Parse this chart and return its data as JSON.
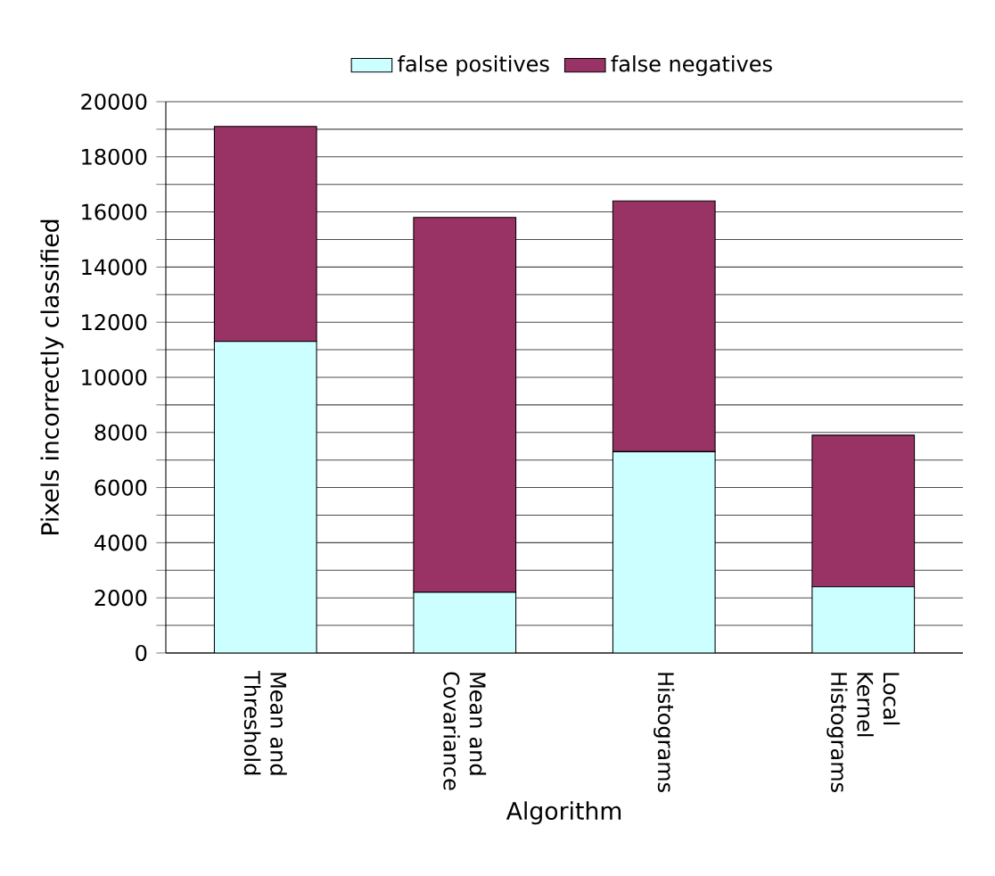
{
  "chart_data": {
    "type": "bar",
    "stacked": true,
    "xlabel": "Algorithm",
    "ylabel": "Pixels incorrectly classified",
    "categories": [
      "Mean and Threshold",
      "Mean and Covariance",
      "Histograms",
      "Local Kernel Histograms"
    ],
    "series": [
      {
        "name": "false positives",
        "color": "#ccffff",
        "values": [
          11300,
          2200,
          7300,
          2400
        ]
      },
      {
        "name": "false negatives",
        "color": "#993366",
        "values": [
          7800,
          13600,
          9100,
          5500
        ]
      }
    ],
    "ylim": [
      0,
      20000
    ],
    "yticks": [
      0,
      {
        "value": 1000,
        "label": null
      },
      2000,
      {
        "value": 3000,
        "label": null
      },
      4000,
      {
        "value": 5000,
        "label": null
      },
      6000,
      {
        "value": 7000,
        "label": null
      },
      8000,
      {
        "value": 9000,
        "label": null
      },
      10000,
      {
        "value": 11000,
        "label": null
      },
      12000,
      {
        "value": 13000,
        "label": null
      },
      14000,
      {
        "value": 15000,
        "label": null
      },
      16000,
      {
        "value": 17000,
        "label": null
      },
      18000,
      {
        "value": 19000,
        "label": null
      },
      20000
    ],
    "grid": "y",
    "legend": "top"
  }
}
